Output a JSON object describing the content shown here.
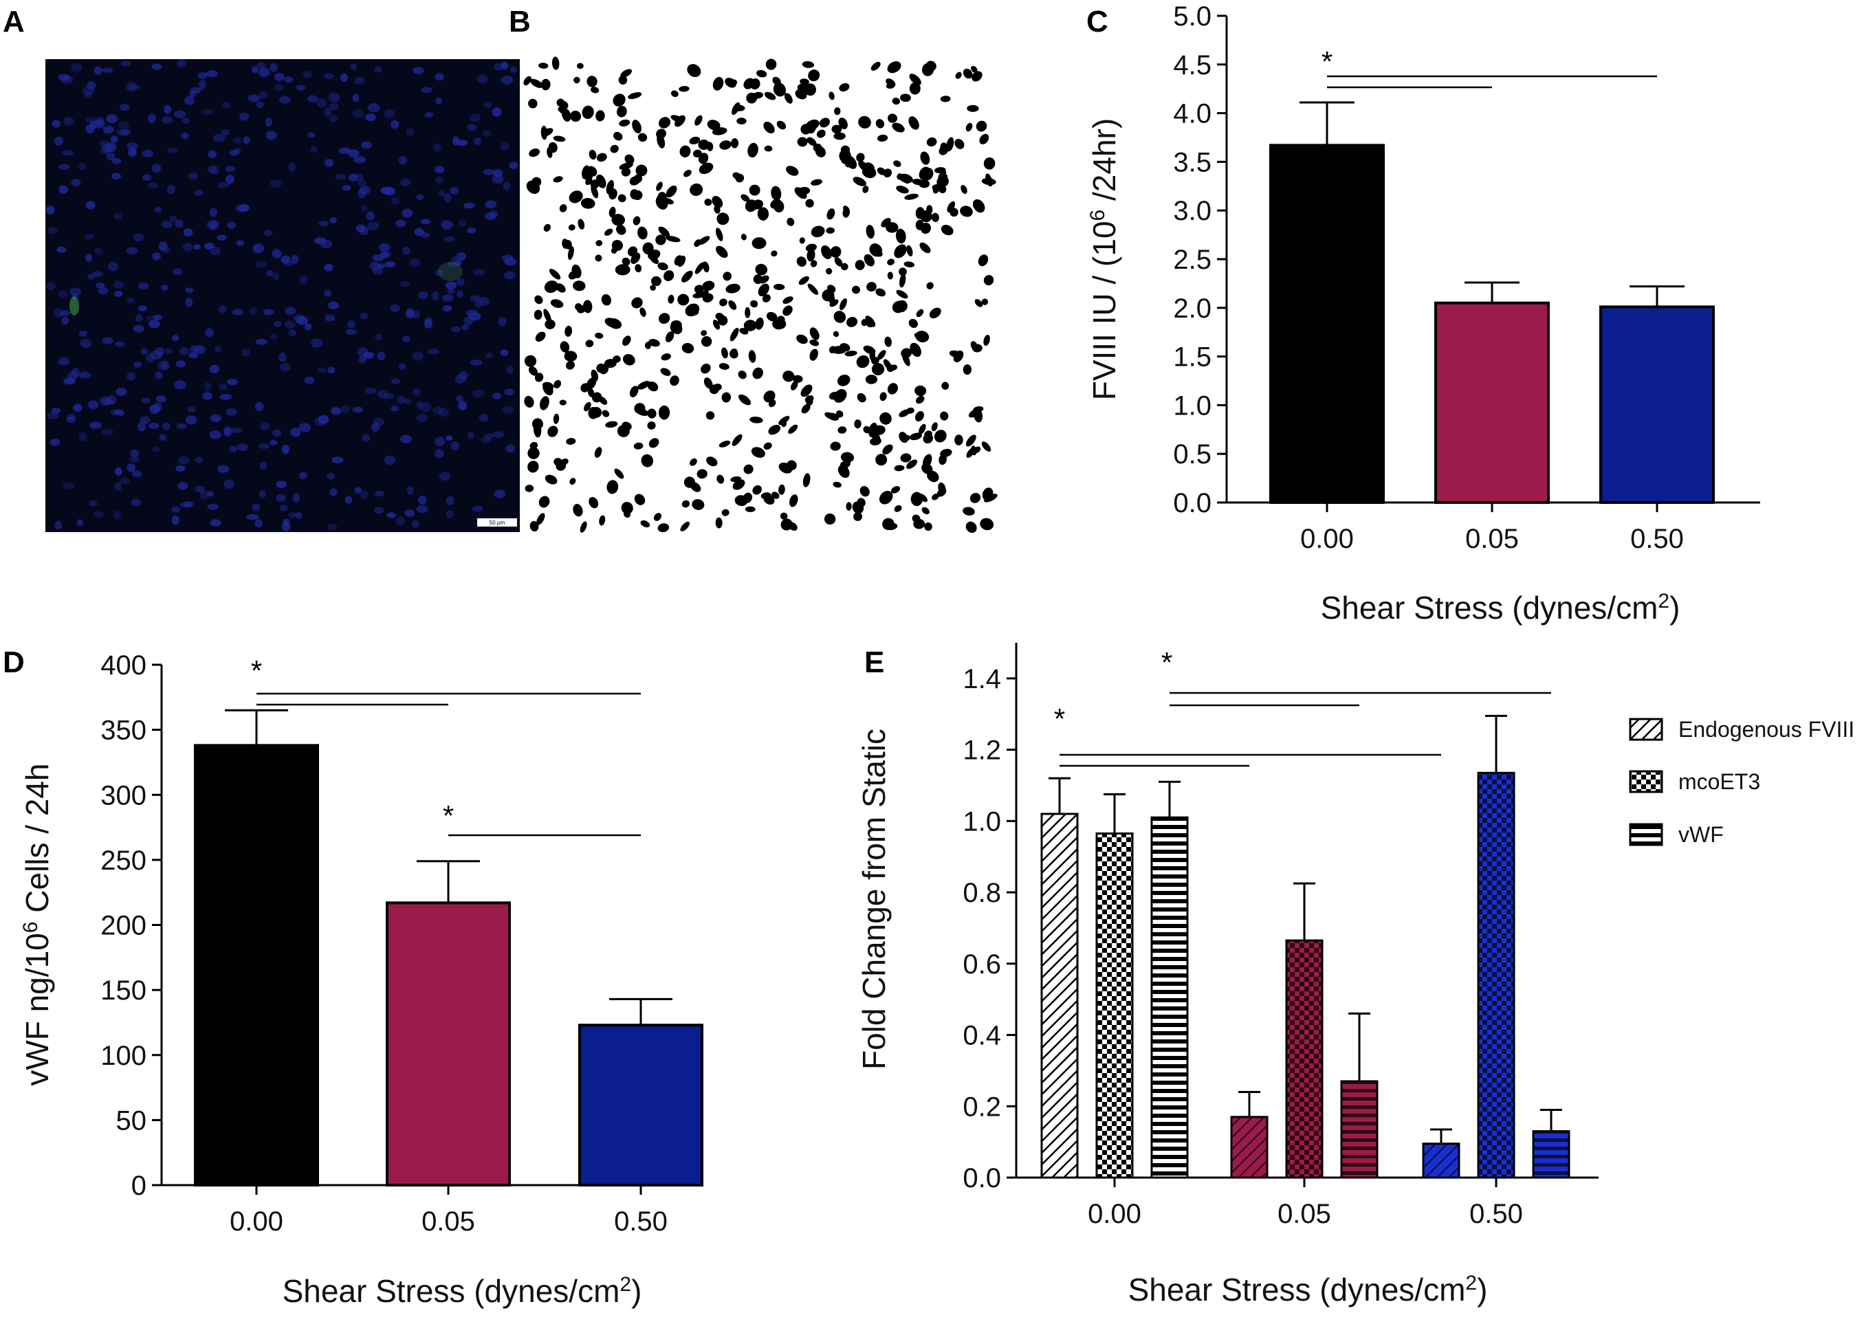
{
  "panels": {
    "A": "A",
    "B": "B",
    "C": "C",
    "D": "D",
    "E": "E"
  },
  "micrograph": {
    "scale_bar_label": "50 μm"
  },
  "colors": {
    "static": "#000000",
    "low": "#9b1b4a",
    "high": "#0a1e8f",
    "nuclei_bg": "#05081a",
    "nuclei": "#1e2a9c"
  },
  "chart_data": [
    {
      "id": "C",
      "type": "bar",
      "title": "",
      "xlabel_main": "Shear Stress (dynes/cm",
      "xlabel_sup": "2",
      "xlabel_end": ")",
      "ylabel_main": "FVIII IU / (10",
      "ylabel_sup": "6",
      "ylabel_end": " /24hr)",
      "categories": [
        "0.00",
        "0.05",
        "0.50"
      ],
      "values": [
        3.67,
        2.05,
        2.01
      ],
      "errors": [
        0.44,
        0.21,
        0.21
      ],
      "ylim": [
        0,
        5.0
      ],
      "yticks": [
        "0.0",
        "0.5",
        "1.0",
        "1.5",
        "2.0",
        "2.5",
        "3.0",
        "3.5",
        "4.0",
        "4.5",
        "5.0"
      ],
      "significance": [
        {
          "label": "*",
          "from": "0.00",
          "to": "0.05"
        },
        {
          "label": "",
          "from": "0.00",
          "to": "0.50"
        }
      ]
    },
    {
      "id": "D",
      "type": "bar",
      "title": "",
      "xlabel_main": "Shear Stress (dynes/cm",
      "xlabel_sup": "2",
      "xlabel_end": ")",
      "ylabel_main": "vWF  ng/10",
      "ylabel_sup": "6",
      "ylabel_end": " Cells / 24h",
      "categories": [
        "0.00",
        "0.05",
        "0.50"
      ],
      "values": [
        338,
        217,
        123
      ],
      "errors": [
        27,
        32,
        20
      ],
      "ylim": [
        0,
        400
      ],
      "yticks": [
        "0",
        "50",
        "100",
        "150",
        "200",
        "250",
        "300",
        "350",
        "400"
      ],
      "significance": [
        {
          "label": "*",
          "from": "0.00",
          "to": "0.05"
        },
        {
          "label": "",
          "from": "0.00",
          "to": "0.50"
        },
        {
          "label": "*",
          "from": "0.05",
          "to": "0.50"
        }
      ]
    },
    {
      "id": "E",
      "type": "bar",
      "title": "",
      "xlabel_main": "Shear Stress (dynes/cm",
      "xlabel_sup": "2",
      "xlabel_end": ")",
      "ylabel": "Fold Change from Static",
      "categories": [
        "0.00",
        "0.05",
        "0.50"
      ],
      "series": [
        {
          "name": "Endogenous FVIII",
          "values": [
            1.02,
            0.17,
            0.095
          ],
          "errors": [
            0.1,
            0.07,
            0.04
          ]
        },
        {
          "name": "mcoET3",
          "values": [
            0.965,
            0.665,
            1.135
          ],
          "errors": [
            0.11,
            0.16,
            0.16
          ]
        },
        {
          "name": "vWF",
          "values": [
            1.01,
            0.27,
            0.13
          ],
          "errors": [
            0.1,
            0.19,
            0.06
          ]
        }
      ],
      "ylim": [
        0,
        1.5
      ],
      "yticks": [
        "0.0",
        "0.2",
        "0.4",
        "0.6",
        "0.8",
        "1.0",
        "1.2",
        "1.4"
      ],
      "legend_position": "right",
      "significance": [
        {
          "label": "*",
          "group": "Endogenous FVIII",
          "from": "0.00",
          "to": "0.05"
        },
        {
          "label": "",
          "group": "Endogenous FVIII",
          "from": "0.00",
          "to": "0.50"
        },
        {
          "label": "*",
          "group": "vWF",
          "from": "0.00",
          "to": "0.05"
        },
        {
          "label": "",
          "group": "vWF",
          "from": "0.00",
          "to": "0.50"
        }
      ]
    }
  ]
}
